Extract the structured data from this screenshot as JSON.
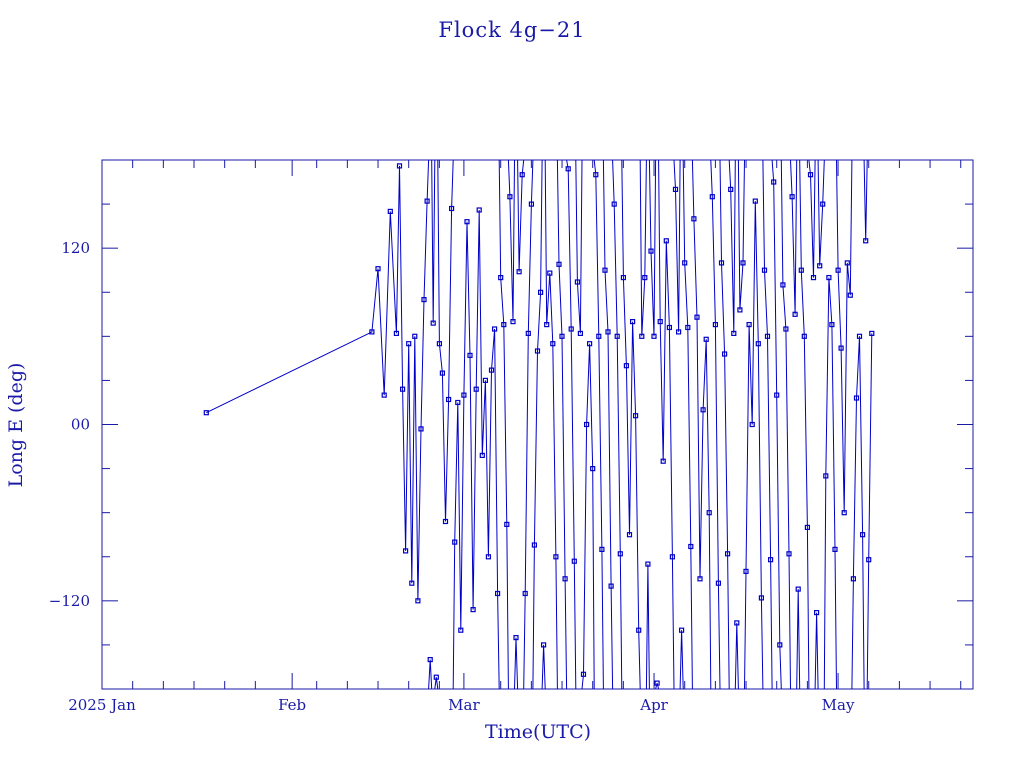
{
  "chart_data": {
    "type": "scatter",
    "title": "Flock 4g−21",
    "xlabel": "Time(UTC)",
    "ylabel": "Long E (deg)",
    "x_axis_type": "date",
    "x_range": [
      "2025-01-01",
      "2025-05-23"
    ],
    "x_ticks": [
      {
        "date": "2025-01-01",
        "label": "2025 Jan"
      },
      {
        "date": "2025-02-01",
        "label": "Feb"
      },
      {
        "date": "2025-03-01",
        "label": "Mar"
      },
      {
        "date": "2025-04-01",
        "label": "Apr"
      },
      {
        "date": "2025-05-01",
        "label": "May"
      }
    ],
    "ylim": [
      -180,
      180
    ],
    "y_ticks": [
      {
        "value": 120,
        "label": "120"
      },
      {
        "value": 0,
        "label": "00"
      },
      {
        "value": -120,
        "label": "−120"
      }
    ],
    "y_minor_step": 30,
    "grid": false,
    "legend": "none",
    "connected_line": true,
    "marker": "small-square",
    "color": "#0000c8",
    "points": [
      [
        "2025-01-18",
        8
      ],
      [
        "2025-02-14",
        63
      ],
      [
        "2025-02-15",
        106
      ],
      [
        "2025-02-16",
        20
      ],
      [
        "2025-02-17",
        145
      ],
      [
        "2025-02-18",
        62
      ],
      [
        "2025-02-18",
        176
      ],
      [
        "2025-02-19",
        24
      ],
      [
        "2025-02-19",
        -86
      ],
      [
        "2025-02-20",
        55
      ],
      [
        "2025-02-20",
        -108
      ],
      [
        "2025-02-21",
        60
      ],
      [
        "2025-02-21",
        -120
      ],
      [
        "2025-02-22",
        -3
      ],
      [
        "2025-02-22",
        85
      ],
      [
        "2025-02-23",
        152
      ],
      [
        "2025-02-23",
        -160
      ],
      [
        "2025-02-24",
        69
      ],
      [
        "2025-02-24",
        -172
      ],
      [
        "2025-02-25",
        55
      ],
      [
        "2025-02-25",
        35
      ],
      [
        "2025-02-26",
        -66
      ],
      [
        "2025-02-26",
        17
      ],
      [
        "2025-02-27",
        147
      ],
      [
        "2025-02-27",
        -80
      ],
      [
        "2025-02-28",
        15
      ],
      [
        "2025-02-28",
        -140
      ],
      [
        "2025-03-01",
        20
      ],
      [
        "2025-03-01",
        138
      ],
      [
        "2025-03-02",
        47
      ],
      [
        "2025-03-02",
        -126
      ],
      [
        "2025-03-03",
        24
      ],
      [
        "2025-03-03",
        146
      ],
      [
        "2025-03-04",
        -21
      ],
      [
        "2025-03-04",
        30
      ],
      [
        "2025-03-05",
        -90
      ],
      [
        "2025-03-05",
        37
      ],
      [
        "2025-03-06",
        65
      ],
      [
        "2025-03-06",
        -115
      ],
      [
        "2025-03-07",
        100
      ],
      [
        "2025-03-07",
        68
      ],
      [
        "2025-03-08",
        -68
      ],
      [
        "2025-03-08",
        155
      ],
      [
        "2025-03-09",
        70
      ],
      [
        "2025-03-09",
        -145
      ],
      [
        "2025-03-10",
        104
      ],
      [
        "2025-03-10",
        170
      ],
      [
        "2025-03-11",
        -115
      ],
      [
        "2025-03-11",
        62
      ],
      [
        "2025-03-12",
        150
      ],
      [
        "2025-03-12",
        -82
      ],
      [
        "2025-03-13",
        50
      ],
      [
        "2025-03-13",
        90
      ],
      [
        "2025-03-14",
        -150
      ],
      [
        "2025-03-14",
        68
      ],
      [
        "2025-03-15",
        103
      ],
      [
        "2025-03-15",
        55
      ],
      [
        "2025-03-16",
        -90
      ],
      [
        "2025-03-16",
        109
      ],
      [
        "2025-03-17",
        60
      ],
      [
        "2025-03-17",
        -105
      ],
      [
        "2025-03-18",
        174
      ],
      [
        "2025-03-18",
        65
      ],
      [
        "2025-03-19",
        -93
      ],
      [
        "2025-03-19",
        97
      ],
      [
        "2025-03-20",
        62
      ],
      [
        "2025-03-20",
        -170
      ],
      [
        "2025-03-21",
        0
      ],
      [
        "2025-03-21",
        55
      ],
      [
        "2025-03-22",
        -30
      ],
      [
        "2025-03-22",
        170
      ],
      [
        "2025-03-23",
        60
      ],
      [
        "2025-03-23",
        -85
      ],
      [
        "2025-03-24",
        105
      ],
      [
        "2025-03-24",
        63
      ],
      [
        "2025-03-25",
        -110
      ],
      [
        "2025-03-25",
        150
      ],
      [
        "2025-03-26",
        60
      ],
      [
        "2025-03-26",
        -88
      ],
      [
        "2025-03-27",
        100
      ],
      [
        "2025-03-27",
        40
      ],
      [
        "2025-03-28",
        -75
      ],
      [
        "2025-03-28",
        70
      ],
      [
        "2025-03-29",
        6
      ],
      [
        "2025-03-29",
        -140
      ],
      [
        "2025-03-30",
        60
      ],
      [
        "2025-03-30",
        100
      ],
      [
        "2025-03-31",
        -95
      ],
      [
        "2025-03-31",
        118
      ],
      [
        "2025-04-01",
        60
      ],
      [
        "2025-04-01",
        -176
      ],
      [
        "2025-04-02",
        70
      ],
      [
        "2025-04-02",
        -25
      ],
      [
        "2025-04-03",
        125
      ],
      [
        "2025-04-03",
        66
      ],
      [
        "2025-04-04",
        -90
      ],
      [
        "2025-04-04",
        160
      ],
      [
        "2025-04-05",
        63
      ],
      [
        "2025-04-05",
        -140
      ],
      [
        "2025-04-06",
        110
      ],
      [
        "2025-04-06",
        66
      ],
      [
        "2025-04-07",
        -83
      ],
      [
        "2025-04-07",
        140
      ],
      [
        "2025-04-08",
        73
      ],
      [
        "2025-04-08",
        -105
      ],
      [
        "2025-04-09",
        10
      ],
      [
        "2025-04-09",
        58
      ],
      [
        "2025-04-10",
        -60
      ],
      [
        "2025-04-10",
        155
      ],
      [
        "2025-04-11",
        68
      ],
      [
        "2025-04-11",
        -108
      ],
      [
        "2025-04-12",
        110
      ],
      [
        "2025-04-12",
        48
      ],
      [
        "2025-04-13",
        -88
      ],
      [
        "2025-04-13",
        160
      ],
      [
        "2025-04-14",
        62
      ],
      [
        "2025-04-14",
        -135
      ],
      [
        "2025-04-15",
        78
      ],
      [
        "2025-04-15",
        110
      ],
      [
        "2025-04-16",
        -100
      ],
      [
        "2025-04-16",
        68
      ],
      [
        "2025-04-17",
        0
      ],
      [
        "2025-04-17",
        152
      ],
      [
        "2025-04-18",
        55
      ],
      [
        "2025-04-18",
        -118
      ],
      [
        "2025-04-19",
        105
      ],
      [
        "2025-04-19",
        60
      ],
      [
        "2025-04-20",
        -92
      ],
      [
        "2025-04-20",
        165
      ],
      [
        "2025-04-21",
        20
      ],
      [
        "2025-04-21",
        -150
      ],
      [
        "2025-04-22",
        95
      ],
      [
        "2025-04-22",
        65
      ],
      [
        "2025-04-23",
        -88
      ],
      [
        "2025-04-23",
        155
      ],
      [
        "2025-04-24",
        75
      ],
      [
        "2025-04-24",
        -112
      ],
      [
        "2025-04-25",
        105
      ],
      [
        "2025-04-25",
        60
      ],
      [
        "2025-04-26",
        -70
      ],
      [
        "2025-04-26",
        170
      ],
      [
        "2025-04-27",
        100
      ],
      [
        "2025-04-27",
        -128
      ],
      [
        "2025-04-28",
        108
      ],
      [
        "2025-04-28",
        150
      ],
      [
        "2025-04-29",
        -35
      ],
      [
        "2025-04-29",
        100
      ],
      [
        "2025-04-30",
        68
      ],
      [
        "2025-04-30",
        -85
      ],
      [
        "2025-05-01",
        105
      ],
      [
        "2025-05-01",
        52
      ],
      [
        "2025-05-02",
        -60
      ],
      [
        "2025-05-02",
        110
      ],
      [
        "2025-05-03",
        88
      ],
      [
        "2025-05-03",
        -105
      ],
      [
        "2025-05-04",
        18
      ],
      [
        "2025-05-04",
        60
      ],
      [
        "2025-05-05",
        -75
      ],
      [
        "2025-05-05",
        125
      ],
      [
        "2025-05-06",
        -92
      ],
      [
        "2025-05-06",
        62
      ]
    ]
  }
}
